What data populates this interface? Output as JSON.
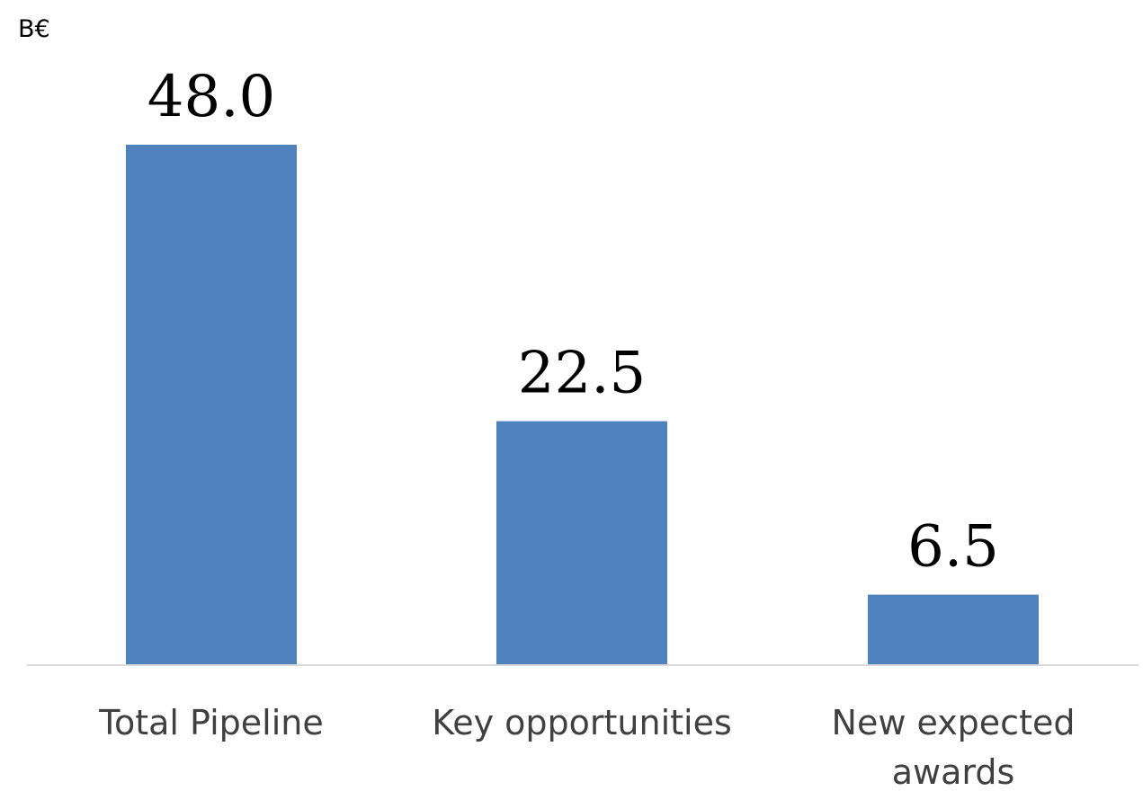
{
  "chart_data": {
    "type": "bar",
    "unit_label": "B€",
    "categories": [
      "Total Pipeline",
      "Key opportunities",
      "New expected awards"
    ],
    "values": [
      48.0,
      22.5,
      6.5
    ],
    "value_labels": [
      "48.0",
      "22.5",
      "6.5"
    ],
    "ylim": [
      0,
      48
    ],
    "grid": false,
    "legend": "none",
    "bar_color": "#4F81BD",
    "axis_color": "#D9D9D9"
  }
}
